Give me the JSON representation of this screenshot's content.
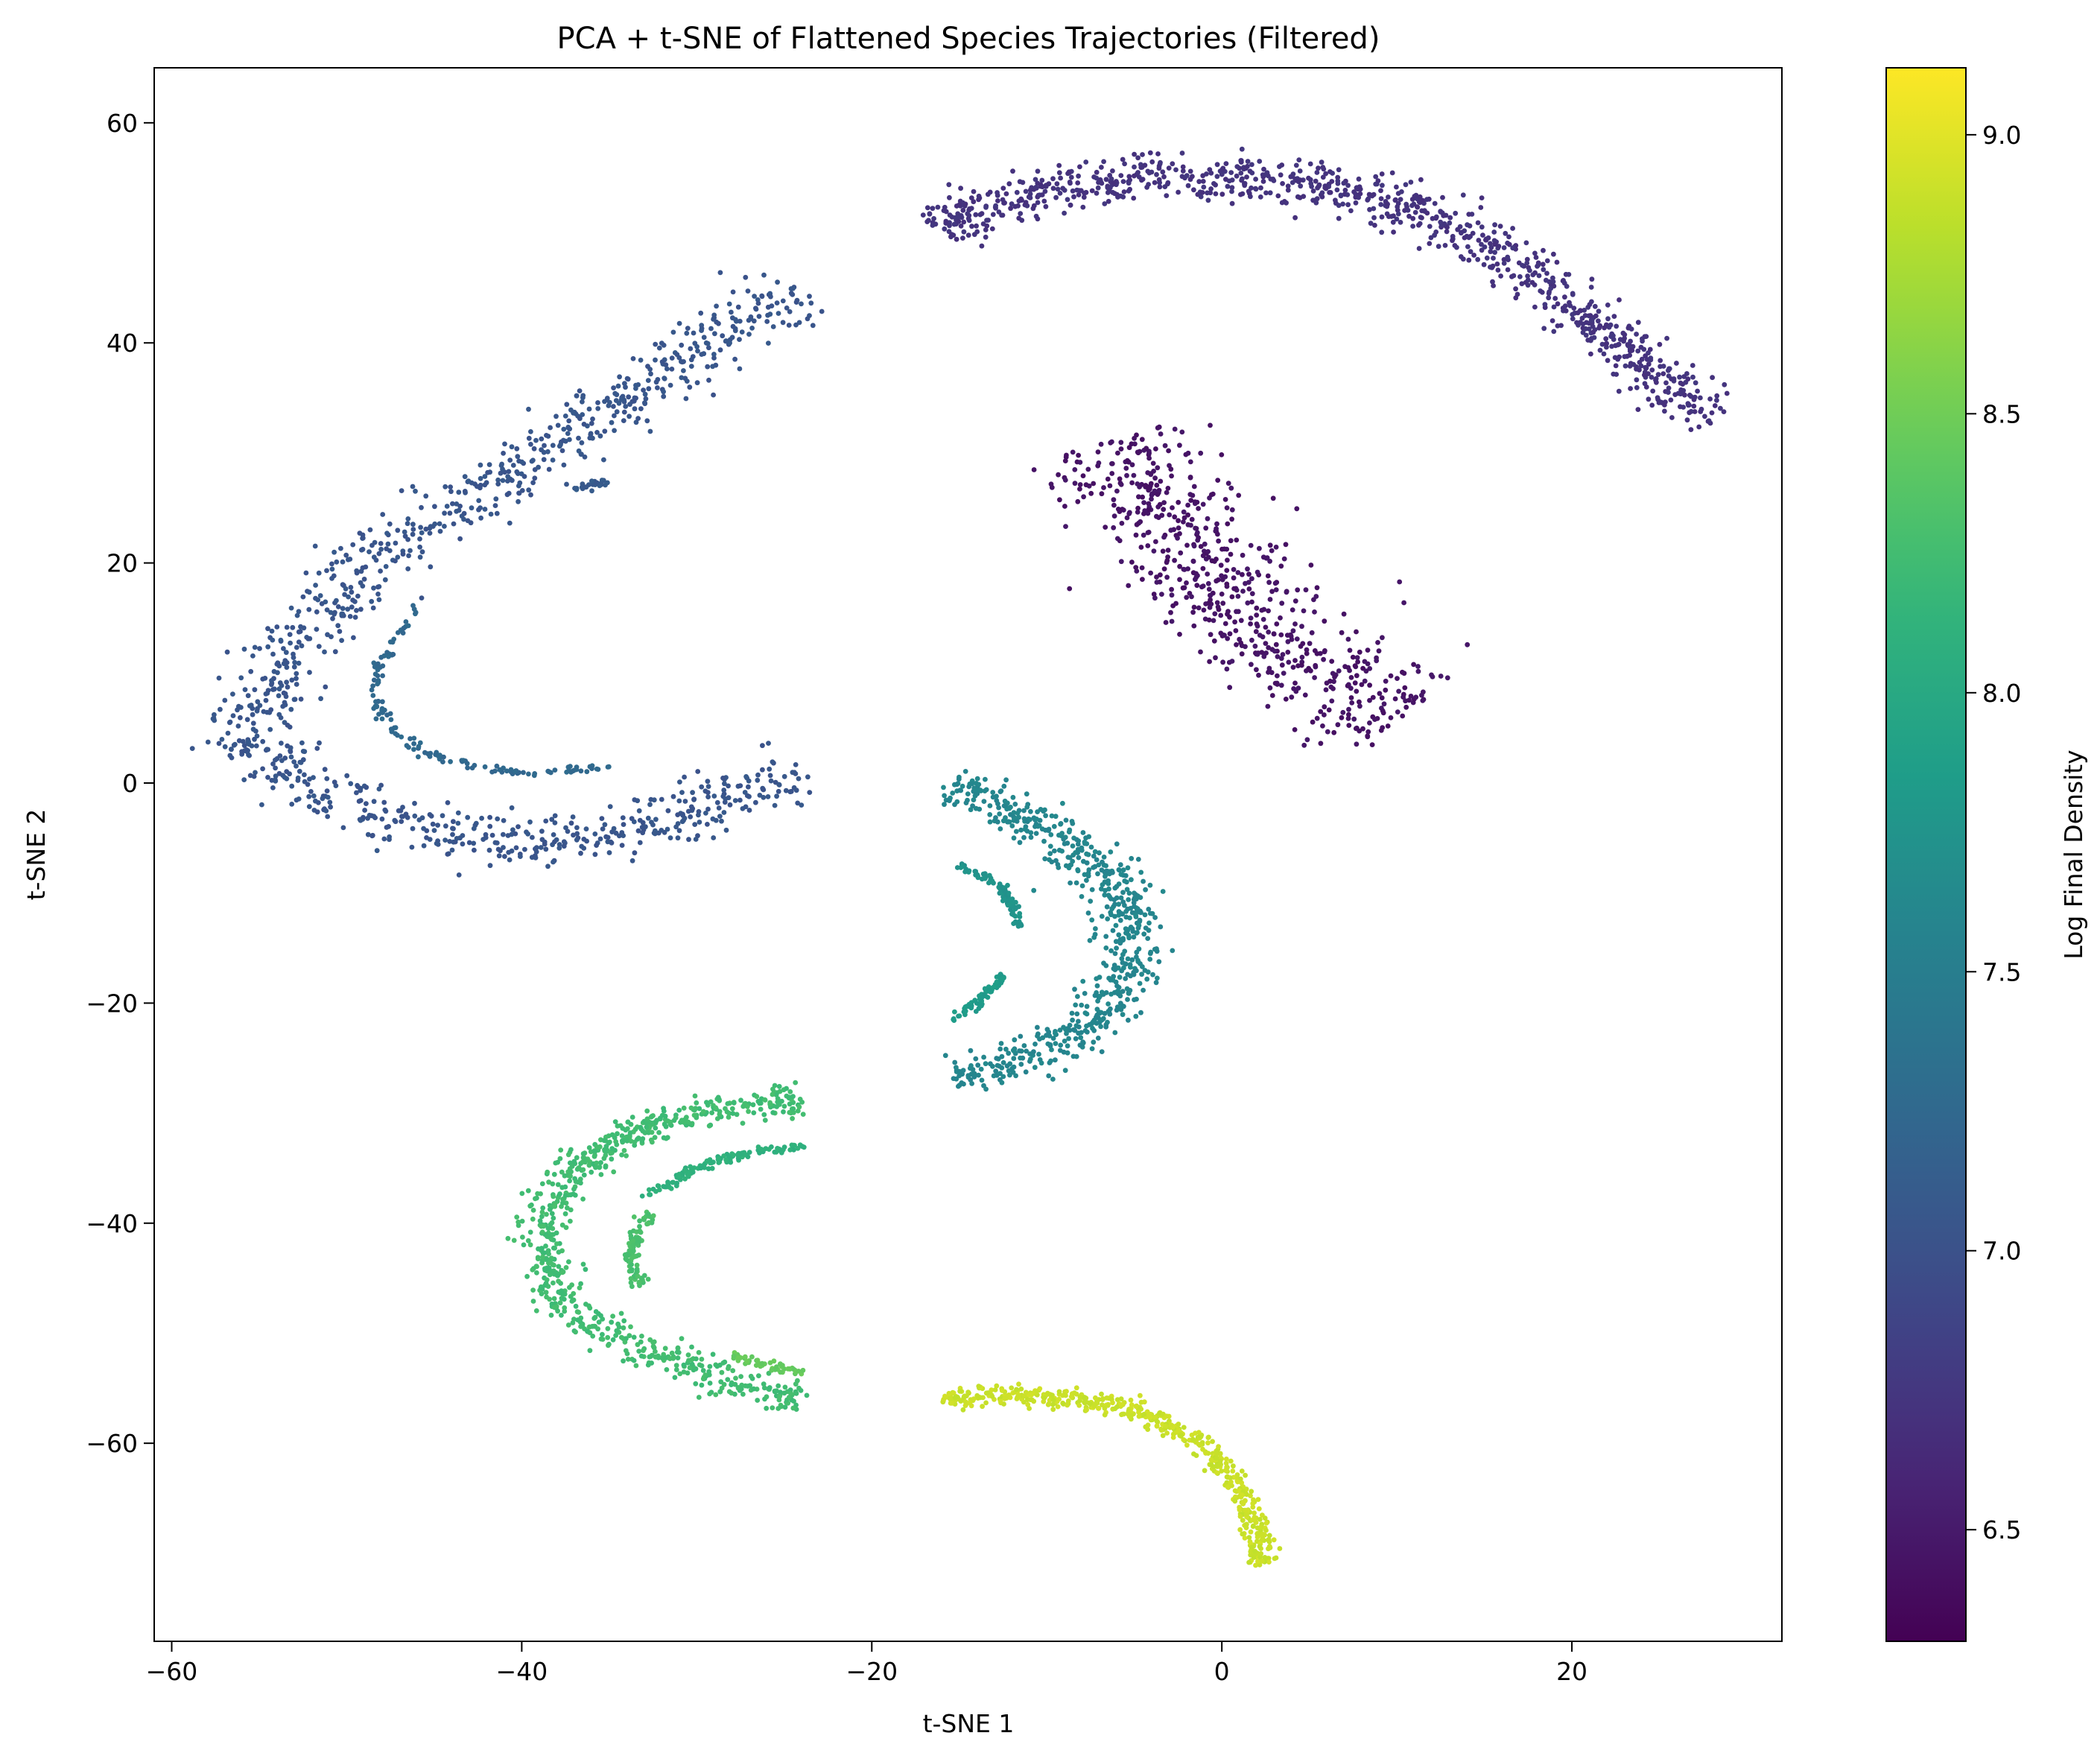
{
  "chart_data": {
    "type": "scatter",
    "title": "PCA + t-SNE of Flattened Species Trajectories (Filtered)",
    "xlabel": "t-SNE 1",
    "ylabel": "t-SNE 2",
    "xlim": [
      -61,
      32
    ],
    "ylim": [
      -78,
      65
    ],
    "xticks": [
      -60,
      -40,
      -20,
      0,
      20
    ],
    "yticks": [
      -60,
      -40,
      -20,
      0,
      20,
      40,
      60
    ],
    "grid": false,
    "colormap": "viridis",
    "colorbar": {
      "label": "Log Final Density",
      "range": [
        6.3,
        9.12
      ],
      "ticks": [
        6.5,
        7.0,
        7.5,
        8.0,
        8.5,
        9.0
      ]
    },
    "clusters": [
      {
        "shape": "upper-left arc (outer band)",
        "color_value": 7.05,
        "thickness": 2.4,
        "count": 1100,
        "path": [
          [
            -24,
            45
          ],
          [
            -28,
            42
          ],
          [
            -32,
            37
          ],
          [
            -36,
            33
          ],
          [
            -40,
            29
          ],
          [
            -44,
            25
          ],
          [
            -48,
            21
          ],
          [
            -51,
            16
          ],
          [
            -54,
            10
          ],
          [
            -56,
            5
          ],
          [
            -54,
            1
          ],
          [
            -50,
            -2
          ],
          [
            -46,
            -4
          ],
          [
            -42,
            -5.5
          ],
          [
            -38,
            -5.5
          ],
          [
            -33,
            -4
          ],
          [
            -28,
            -1.5
          ],
          [
            -24,
            1.5
          ]
        ]
      },
      {
        "shape": "upper-left inner arc",
        "color_value": 7.25,
        "thickness": 0.3,
        "count": 140,
        "path": [
          [
            -46,
            16
          ],
          [
            -47,
            13.5
          ],
          [
            -48,
            11
          ],
          [
            -48.5,
            9
          ],
          [
            -48,
            6
          ],
          [
            -47,
            4
          ],
          [
            -45,
            2.5
          ],
          [
            -43,
            1.5
          ],
          [
            -40,
            1
          ],
          [
            -37,
            1.2
          ],
          [
            -35,
            1.5
          ]
        ]
      },
      {
        "shape": "upper-left inner arc (upper fragment)",
        "color_value": 7.1,
        "thickness": 0.3,
        "count": 25,
        "path": [
          [
            -37,
            26.5
          ],
          [
            -35,
            27.5
          ]
        ]
      },
      {
        "shape": "top right arc",
        "color_value": 6.72,
        "thickness": 2.0,
        "count": 950,
        "path": [
          [
            -16,
            50
          ],
          [
            -15,
            52
          ],
          [
            -12,
            53
          ],
          [
            -9,
            54
          ],
          [
            -6,
            55
          ],
          [
            -3,
            55.5
          ],
          [
            0,
            55
          ],
          [
            3,
            55
          ],
          [
            6,
            54
          ],
          [
            9,
            53
          ],
          [
            12,
            51.5
          ],
          [
            15,
            49
          ],
          [
            18,
            46
          ],
          [
            21,
            42
          ],
          [
            24,
            38
          ],
          [
            27,
            34
          ],
          [
            28,
            33
          ]
        ]
      },
      {
        "shape": "right diagonal band",
        "color_value": 6.45,
        "thickness": 4.5,
        "count": 650,
        "path": [
          [
            -6.5,
            31
          ],
          [
            -4,
            26
          ],
          [
            -2,
            22
          ],
          [
            0,
            18
          ],
          [
            2,
            15
          ],
          [
            4,
            12
          ],
          [
            6,
            9
          ],
          [
            8,
            8
          ],
          [
            10.5,
            6
          ]
        ]
      },
      {
        "shape": "middle right C arc",
        "color_value": 7.6,
        "thickness": 1.8,
        "count": 650,
        "path": [
          [
            -15.5,
            0
          ],
          [
            -13,
            -2
          ],
          [
            -10,
            -4
          ],
          [
            -7.5,
            -7
          ],
          [
            -6,
            -10
          ],
          [
            -5,
            -14
          ],
          [
            -5.5,
            -18
          ],
          [
            -7,
            -21
          ],
          [
            -9,
            -23.5
          ],
          [
            -12,
            -25.5
          ],
          [
            -15.5,
            -26.5
          ]
        ]
      },
      {
        "shape": "middle right inner arcs",
        "color_value": 7.75,
        "thickness": 0.25,
        "count": 90,
        "path": [
          [
            -15,
            -7.5
          ],
          [
            -13,
            -9
          ],
          [
            -12,
            -11
          ],
          [
            -11.5,
            -13
          ]
        ]
      },
      {
        "shape": "middle right inner arcs (lower)",
        "color_value": 7.85,
        "thickness": 0.25,
        "count": 70,
        "path": [
          [
            -12.5,
            -17.5
          ],
          [
            -14,
            -20
          ],
          [
            -15.5,
            -21.5
          ]
        ]
      },
      {
        "shape": "lower left arc (outer band)",
        "color_value": 8.25,
        "thickness": 1.4,
        "count": 750,
        "path": [
          [
            -24,
            -28.5
          ],
          [
            -27,
            -29.5
          ],
          [
            -30,
            -30
          ],
          [
            -33,
            -31.5
          ],
          [
            -36,
            -34
          ],
          [
            -38,
            -37
          ],
          [
            -39,
            -41
          ],
          [
            -38.5,
            -45
          ],
          [
            -37,
            -48
          ],
          [
            -34,
            -51
          ],
          [
            -30,
            -53
          ],
          [
            -27,
            -55
          ],
          [
            -24,
            -56
          ]
        ]
      },
      {
        "shape": "lower left inner arcs",
        "color_value": 8.1,
        "thickness": 0.25,
        "count": 130,
        "path": [
          [
            -24,
            -33
          ],
          [
            -27,
            -33.5
          ],
          [
            -30,
            -35
          ],
          [
            -33,
            -37.5
          ]
        ]
      },
      {
        "shape": "lower left inner arcs (small C)",
        "color_value": 8.3,
        "thickness": 0.25,
        "count": 90,
        "path": [
          [
            -32.5,
            -39
          ],
          [
            -33.5,
            -41
          ],
          [
            -33.8,
            -43
          ],
          [
            -33.3,
            -45.5
          ]
        ]
      },
      {
        "shape": "lower left inner arcs (fragments)",
        "color_value": 8.45,
        "thickness": 0.25,
        "count": 50,
        "path": [
          [
            -28,
            -52
          ],
          [
            -26,
            -53
          ],
          [
            -24,
            -53.5
          ]
        ]
      },
      {
        "shape": "bottom tail arc",
        "color_value": 8.9,
        "thickness": 0.8,
        "count": 550,
        "path": [
          [
            -16,
            -56
          ],
          [
            -12,
            -55.5
          ],
          [
            -8,
            -56
          ],
          [
            -4,
            -57.5
          ],
          [
            -1,
            -60
          ],
          [
            1,
            -64
          ],
          [
            2,
            -68
          ],
          [
            2.2,
            -71
          ]
        ]
      }
    ]
  }
}
